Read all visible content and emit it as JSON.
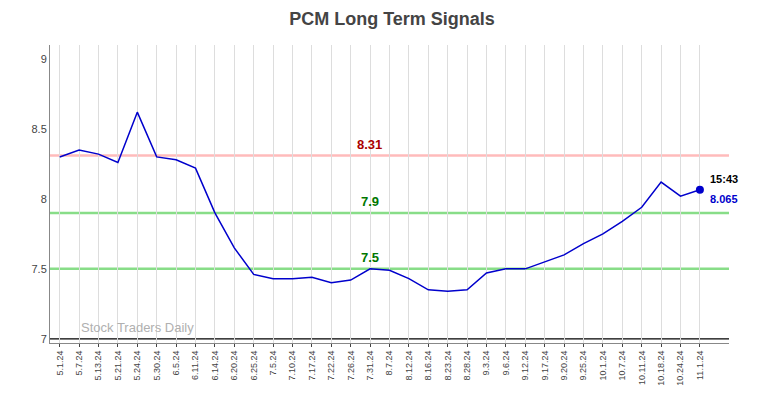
{
  "chart_data": {
    "type": "line",
    "title": "PCM Long Term Signals",
    "categories": [
      "5.1.24",
      "5.7.24",
      "5.13.24",
      "5.21.24",
      "5.24.24",
      "5.30.24",
      "6.5.24",
      "6.11.24",
      "6.14.24",
      "6.20.24",
      "6.25.24",
      "7.5.24",
      "7.10.24",
      "7.17.24",
      "7.22.24",
      "7.26.24",
      "7.31.24",
      "8.7.24",
      "8.12.24",
      "8.16.24",
      "8.23.24",
      "8.28.24",
      "9.3.24",
      "9.6.24",
      "9.12.24",
      "9.17.24",
      "9.20.24",
      "9.25.24",
      "10.1.24",
      "10.7.24",
      "10.11.24",
      "10.18.24",
      "10.24.24",
      "11.1.24"
    ],
    "values": [
      8.3,
      8.35,
      8.32,
      8.26,
      8.62,
      8.3,
      8.28,
      8.22,
      7.9,
      7.65,
      7.46,
      7.43,
      7.43,
      7.44,
      7.4,
      7.42,
      7.5,
      7.49,
      7.43,
      7.35,
      7.34,
      7.35,
      7.47,
      7.5,
      7.5,
      7.55,
      7.6,
      7.68,
      7.75,
      7.84,
      7.94,
      8.12,
      8.02,
      8.065
    ],
    "color": "#0000cc",
    "ylim": [
      6.97,
      9.1
    ],
    "yticks": [
      7,
      7.5,
      8,
      8.5,
      9
    ],
    "grid": "x",
    "reference_lines": [
      {
        "value": 8.31,
        "color": "#ffbbbb",
        "label": "8.31",
        "label_color": "#aa0000"
      },
      {
        "value": 7.9,
        "color": "#88dd88",
        "label": "7.9",
        "label_color": "#007700"
      },
      {
        "value": 7.5,
        "color": "#88dd88",
        "label": "7.5",
        "label_color": "#007700"
      },
      {
        "value": 7.0,
        "color": "#000000"
      }
    ],
    "last_point": {
      "value": 8.065,
      "marker": "circle",
      "time_label": "15:43",
      "time_color": "#000000",
      "value_label": "8.065",
      "value_color": "#0000cc"
    },
    "watermark": {
      "text": "Stock Traders Daily",
      "color": "#b0b0b0"
    }
  }
}
